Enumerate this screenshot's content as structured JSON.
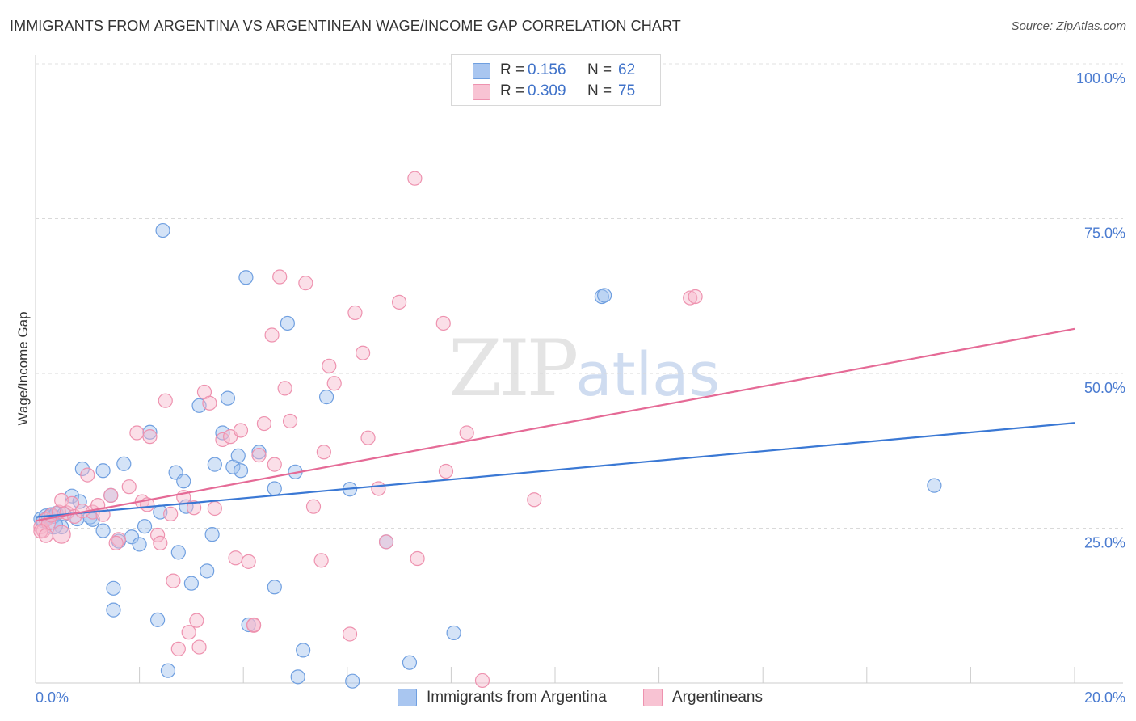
{
  "header": {
    "title": "IMMIGRANTS FROM ARGENTINA VS ARGENTINEAN WAGE/INCOME GAP CORRELATION CHART",
    "source": "Source: ZipAtlas.com"
  },
  "watermark": {
    "zip": "ZIP",
    "atlas": "atlas"
  },
  "legend": {
    "rows": [
      {
        "r_label": "R =",
        "r_value": "0.156",
        "n_label": "N =",
        "n_value": "62",
        "color": "#a9c6f0",
        "border": "#6f9fe0"
      },
      {
        "r_label": "R =",
        "r_value": "0.309",
        "n_label": "N =",
        "n_value": "75",
        "color": "#f8c3d3",
        "border": "#ee92af"
      }
    ]
  },
  "bottom_legend": {
    "series1": "Immigrants from Argentina",
    "series2": "Argentineans"
  },
  "chart_data": {
    "type": "scatter",
    "title": "IMMIGRANTS FROM ARGENTINA VS ARGENTINEAN WAGE/INCOME GAP CORRELATION CHART",
    "xlabel": "",
    "ylabel": "Wage/Income Gap",
    "xlim": [
      0,
      20
    ],
    "ylim": [
      0,
      100
    ],
    "x_tick_labels": [
      "0.0%",
      "20.0%"
    ],
    "y_ticks": [
      25,
      50,
      75,
      100
    ],
    "y_tick_labels": [
      "25.0%",
      "50.0%",
      "75.0%",
      "100.0%"
    ],
    "grid": true,
    "legend_position": "top-center",
    "colors": {
      "blue": "#3a78d4",
      "pink": "#e56a96"
    },
    "series": [
      {
        "name": "Immigrants from Argentina",
        "color": "#3a78d4",
        "trend": {
          "x0": 0,
          "y0": 26.8,
          "x1": 20,
          "y1": 42.0
        },
        "points": [
          [
            0.1,
            26.5
          ],
          [
            0.15,
            26.2
          ],
          [
            0.2,
            27.0
          ],
          [
            0.25,
            26.8
          ],
          [
            0.3,
            27.2
          ],
          [
            0.35,
            26.9
          ],
          [
            0.4,
            27.4
          ],
          [
            0.5,
            25.2
          ],
          [
            0.55,
            27.3
          ],
          [
            0.7,
            30.2
          ],
          [
            0.8,
            26.5
          ],
          [
            0.85,
            29.3
          ],
          [
            1.05,
            26.8
          ],
          [
            1.1,
            26.4
          ],
          [
            0.9,
            34.6
          ],
          [
            1.3,
            34.3
          ],
          [
            1.45,
            30.3
          ],
          [
            1.7,
            35.4
          ],
          [
            1.3,
            24.6
          ],
          [
            1.6,
            22.9
          ],
          [
            1.85,
            23.6
          ],
          [
            2.0,
            22.4
          ],
          [
            2.1,
            25.3
          ],
          [
            2.2,
            40.5
          ],
          [
            2.4,
            27.6
          ],
          [
            1.5,
            15.3
          ],
          [
            1.5,
            11.8
          ],
          [
            2.35,
            10.2
          ],
          [
            2.55,
            2.0
          ],
          [
            2.7,
            34.0
          ],
          [
            2.85,
            32.6
          ],
          [
            2.9,
            28.5
          ],
          [
            2.75,
            21.1
          ],
          [
            3.0,
            16.1
          ],
          [
            3.15,
            44.8
          ],
          [
            3.3,
            18.1
          ],
          [
            3.4,
            24.0
          ],
          [
            3.45,
            35.3
          ],
          [
            3.6,
            40.4
          ],
          [
            3.7,
            46.0
          ],
          [
            3.8,
            34.9
          ],
          [
            3.9,
            36.7
          ],
          [
            3.95,
            34.3
          ],
          [
            4.05,
            65.5
          ],
          [
            4.3,
            37.3
          ],
          [
            4.6,
            31.4
          ],
          [
            4.85,
            58.1
          ],
          [
            4.6,
            15.5
          ],
          [
            5.0,
            34.1
          ],
          [
            5.05,
            1.0
          ],
          [
            5.15,
            5.3
          ],
          [
            5.6,
            46.2
          ],
          [
            6.05,
            31.3
          ],
          [
            6.1,
            0.3
          ],
          [
            6.75,
            22.8
          ],
          [
            7.2,
            3.3
          ],
          [
            8.05,
            8.1
          ],
          [
            10.9,
            62.4
          ],
          [
            10.95,
            62.6
          ],
          [
            17.3,
            31.9
          ],
          [
            2.45,
            73.1
          ],
          [
            4.1,
            9.4
          ]
        ]
      },
      {
        "name": "Argentineans",
        "color": "#e56a96",
        "trend": {
          "x0": 0,
          "y0": 26.2,
          "x1": 20,
          "y1": 57.2
        },
        "points": [
          [
            0.1,
            25.2
          ],
          [
            0.15,
            24.6
          ],
          [
            0.2,
            26.4
          ],
          [
            0.25,
            25.8
          ],
          [
            0.3,
            27.1
          ],
          [
            0.45,
            27.6
          ],
          [
            0.5,
            29.5
          ],
          [
            0.6,
            27.5
          ],
          [
            0.7,
            29.0
          ],
          [
            0.75,
            26.9
          ],
          [
            0.9,
            27.8
          ],
          [
            1.0,
            33.6
          ],
          [
            1.1,
            27.6
          ],
          [
            1.2,
            28.7
          ],
          [
            1.3,
            27.2
          ],
          [
            1.45,
            30.3
          ],
          [
            1.6,
            23.2
          ],
          [
            1.55,
            22.6
          ],
          [
            1.8,
            31.7
          ],
          [
            1.95,
            40.4
          ],
          [
            2.05,
            29.3
          ],
          [
            2.15,
            28.8
          ],
          [
            2.2,
            39.8
          ],
          [
            2.35,
            23.9
          ],
          [
            2.4,
            22.6
          ],
          [
            2.5,
            45.6
          ],
          [
            2.6,
            27.3
          ],
          [
            2.65,
            16.5
          ],
          [
            2.75,
            5.5
          ],
          [
            2.85,
            30.0
          ],
          [
            2.95,
            8.2
          ],
          [
            3.05,
            28.3
          ],
          [
            3.1,
            10.1
          ],
          [
            3.15,
            5.8
          ],
          [
            3.25,
            47.0
          ],
          [
            3.35,
            45.2
          ],
          [
            3.45,
            28.2
          ],
          [
            3.6,
            39.3
          ],
          [
            3.75,
            39.8
          ],
          [
            3.85,
            20.2
          ],
          [
            3.95,
            40.8
          ],
          [
            4.1,
            19.6
          ],
          [
            4.2,
            9.3
          ],
          [
            4.3,
            36.8
          ],
          [
            4.4,
            41.9
          ],
          [
            4.55,
            56.2
          ],
          [
            4.6,
            35.3
          ],
          [
            4.7,
            65.6
          ],
          [
            4.8,
            47.6
          ],
          [
            4.9,
            42.3
          ],
          [
            5.2,
            64.6
          ],
          [
            5.35,
            28.5
          ],
          [
            5.5,
            19.8
          ],
          [
            5.55,
            37.3
          ],
          [
            5.65,
            51.2
          ],
          [
            5.75,
            48.4
          ],
          [
            6.05,
            7.9
          ],
          [
            6.15,
            59.8
          ],
          [
            6.3,
            53.3
          ],
          [
            6.4,
            39.6
          ],
          [
            6.6,
            31.4
          ],
          [
            7.0,
            61.5
          ],
          [
            7.3,
            81.5
          ],
          [
            7.35,
            20.1
          ],
          [
            7.85,
            58.1
          ],
          [
            7.9,
            34.2
          ],
          [
            8.3,
            40.4
          ],
          [
            8.6,
            0.4
          ],
          [
            9.6,
            29.6
          ],
          [
            12.6,
            62.2
          ],
          [
            12.7,
            62.4
          ],
          [
            6.75,
            22.8
          ],
          [
            4.2,
            9.4
          ],
          [
            0.1,
            24.5
          ],
          [
            0.2,
            23.8
          ]
        ]
      }
    ]
  }
}
